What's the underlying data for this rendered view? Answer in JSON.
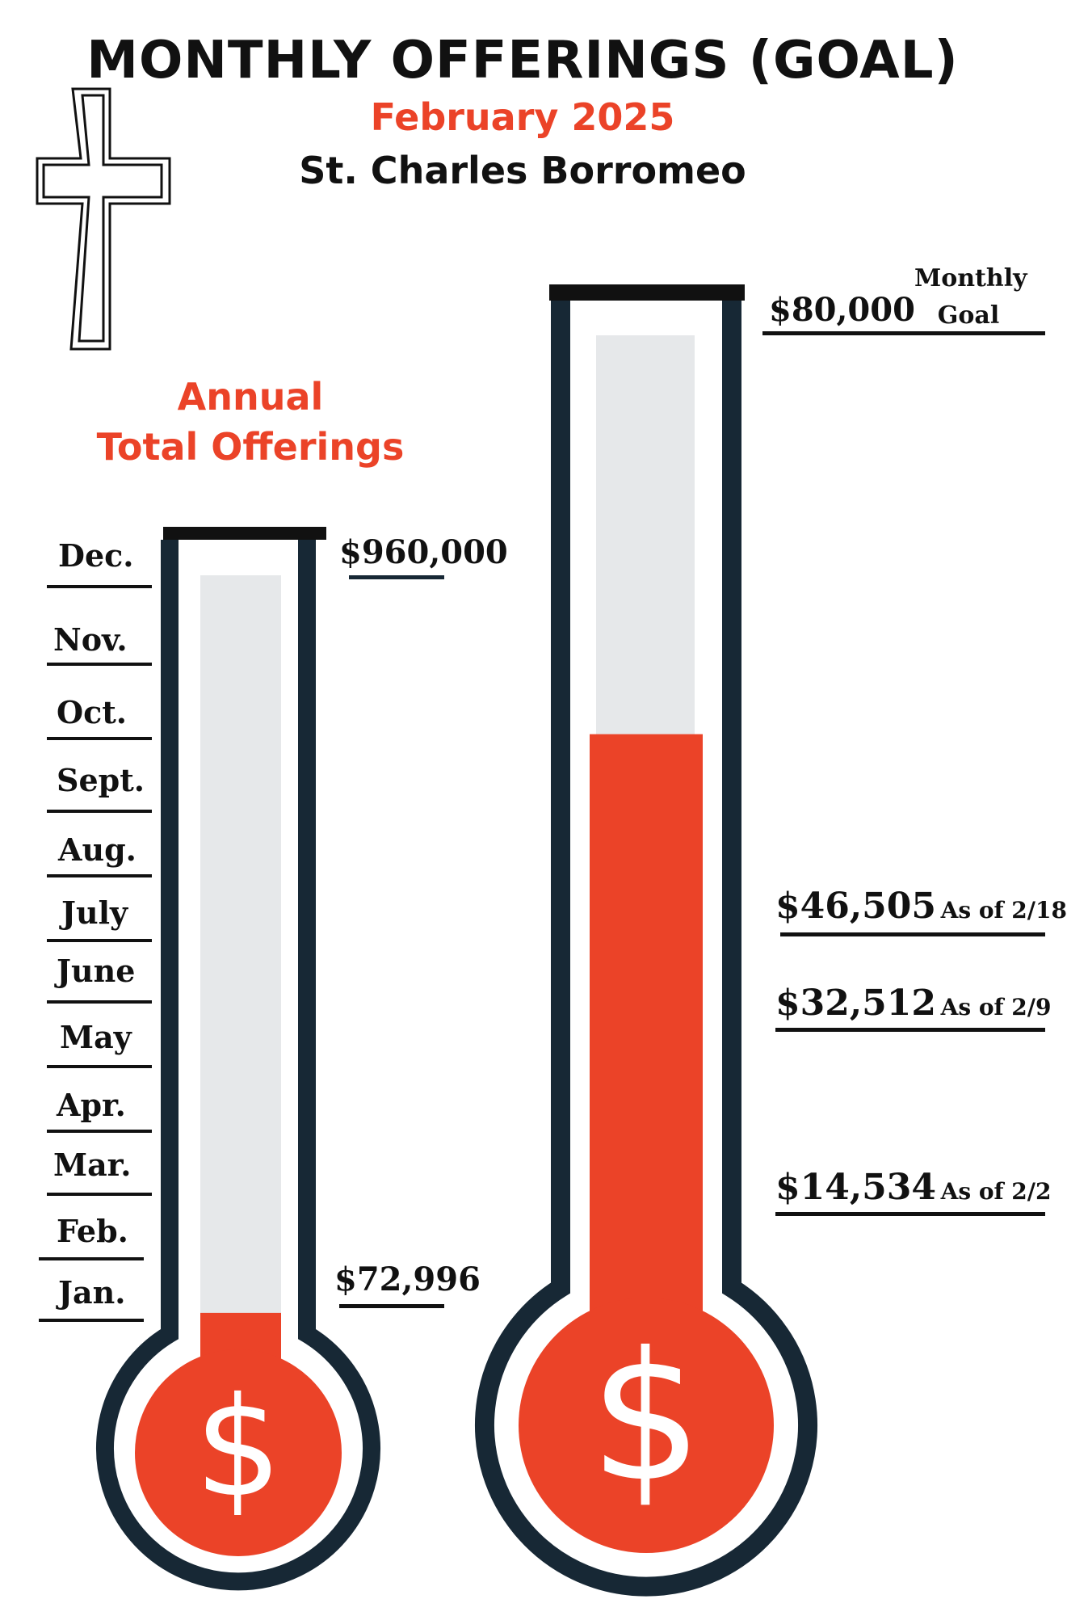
{
  "title": "MONTHLY OFFERINGS (GOAL)",
  "subtitle": "February 2025",
  "parish": "St. Charles Borromeo",
  "annual_heading_line1": "Annual",
  "annual_heading_line2": "Total Offerings",
  "colors": {
    "accent": "#EB4328",
    "outline": "#172835",
    "track": "#E6E8EA",
    "text": "#111111"
  },
  "icons": [
    "cross-icon",
    "dollar-sign-icon"
  ],
  "monthly": {
    "goal_label": "$80,000",
    "goal_note_line1": "Monthly",
    "goal_note_line2": "Goal",
    "milestones": [
      {
        "amount": "$46,505",
        "note": "As of 2/18"
      },
      {
        "amount": "$32,512",
        "note": "As of 2/9"
      },
      {
        "amount": "$14,534",
        "note": "As of 2/2"
      }
    ]
  },
  "annual": {
    "goal_label": "$960,000",
    "current_label": "$72,996",
    "months": [
      "Dec.",
      "Nov.",
      "Oct.",
      "Sept.",
      "Aug.",
      "July",
      "June",
      "May",
      "Apr.",
      "Mar.",
      "Feb.",
      "Jan."
    ]
  },
  "chart_data": [
    {
      "type": "bar",
      "title": "Monthly Goal",
      "goal": 80000,
      "current": 46505,
      "ylim": [
        0,
        80000
      ],
      "milestones": [
        {
          "date": "2/2",
          "value": 14534
        },
        {
          "date": "2/9",
          "value": 32512
        },
        {
          "date": "2/18",
          "value": 46505
        }
      ]
    },
    {
      "type": "bar",
      "title": "Annual Total Offerings",
      "goal": 960000,
      "current": 72996,
      "ylim": [
        0,
        960000
      ],
      "categories": [
        "Jan.",
        "Feb.",
        "Mar.",
        "Apr.",
        "May",
        "June",
        "July",
        "Aug.",
        "Sept.",
        "Oct.",
        "Nov.",
        "Dec."
      ]
    }
  ]
}
